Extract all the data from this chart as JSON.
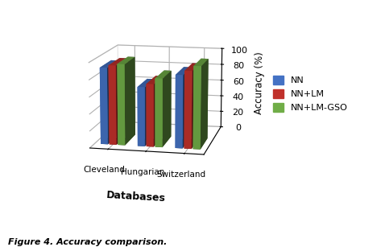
{
  "categories": [
    "Cleveland",
    "Hungarian",
    "Switzerland"
  ],
  "series": {
    "NN": [
      91,
      70,
      86
    ],
    "NN+LM": [
      94,
      74,
      91
    ],
    "NN+LM-GSO": [
      96,
      81,
      97
    ]
  },
  "colors": {
    "NN": "#4472C4",
    "NN+LM": "#C0312B",
    "NN+LM-GSO": "#70AD47"
  },
  "ylabel": "Accuracy (%)",
  "xlabel": "Databases",
  "ylim": [
    0,
    100
  ],
  "yticks": [
    0,
    20,
    40,
    60,
    80,
    100
  ],
  "caption": "Figure 4. Accuracy comparison.",
  "bar_width": 0.35,
  "bar_depth": 0.25,
  "elev": 12,
  "azim": -78
}
